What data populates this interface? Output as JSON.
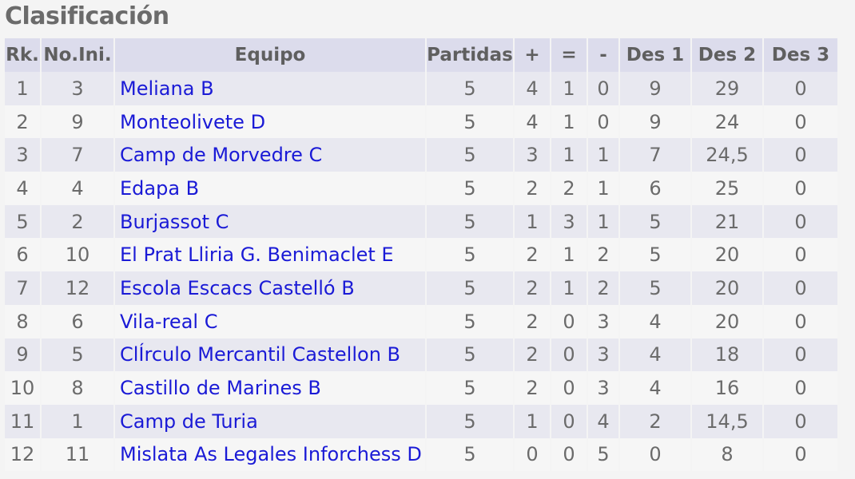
{
  "page_title": "Clasificación",
  "columns": {
    "rank": "Rk.",
    "start_no": "No.Ini.",
    "team": "Equipo",
    "games": "Partidas",
    "wins": "+",
    "draws": "=",
    "losses": "-",
    "tb1": "Des 1",
    "tb2": "Des 2",
    "tb3": "Des 3"
  },
  "rows": [
    {
      "rank": "1",
      "start_no": "3",
      "team": "Meliana B",
      "games": "5",
      "wins": "4",
      "draws": "1",
      "losses": "0",
      "tb1": "9",
      "tb2": "29",
      "tb3": "0"
    },
    {
      "rank": "2",
      "start_no": "9",
      "team": "Monteolivete D",
      "games": "5",
      "wins": "4",
      "draws": "1",
      "losses": "0",
      "tb1": "9",
      "tb2": "24",
      "tb3": "0"
    },
    {
      "rank": "3",
      "start_no": "7",
      "team": "Camp de Morvedre C",
      "games": "5",
      "wins": "3",
      "draws": "1",
      "losses": "1",
      "tb1": "7",
      "tb2": "24,5",
      "tb3": "0"
    },
    {
      "rank": "4",
      "start_no": "4",
      "team": "Edapa B",
      "games": "5",
      "wins": "2",
      "draws": "2",
      "losses": "1",
      "tb1": "6",
      "tb2": "25",
      "tb3": "0"
    },
    {
      "rank": "5",
      "start_no": "2",
      "team": "Burjassot C",
      "games": "5",
      "wins": "1",
      "draws": "3",
      "losses": "1",
      "tb1": "5",
      "tb2": "21",
      "tb3": "0"
    },
    {
      "rank": "6",
      "start_no": "10",
      "team": "El Prat Lliria G. Benimaclet E",
      "games": "5",
      "wins": "2",
      "draws": "1",
      "losses": "2",
      "tb1": "5",
      "tb2": "20",
      "tb3": "0"
    },
    {
      "rank": "7",
      "start_no": "12",
      "team": "Escola Escacs Castelló B",
      "games": "5",
      "wins": "2",
      "draws": "1",
      "losses": "2",
      "tb1": "5",
      "tb2": "20",
      "tb3": "0"
    },
    {
      "rank": "8",
      "start_no": "6",
      "team": "Vila-real C",
      "games": "5",
      "wins": "2",
      "draws": "0",
      "losses": "3",
      "tb1": "4",
      "tb2": "20",
      "tb3": "0"
    },
    {
      "rank": "9",
      "start_no": "5",
      "team": "ClÍrculo Mercantil Castellon B",
      "games": "5",
      "wins": "2",
      "draws": "0",
      "losses": "3",
      "tb1": "4",
      "tb2": "18",
      "tb3": "0"
    },
    {
      "rank": "10",
      "start_no": "8",
      "team": "Castillo de Marines B",
      "games": "5",
      "wins": "2",
      "draws": "0",
      "losses": "3",
      "tb1": "4",
      "tb2": "16",
      "tb3": "0"
    },
    {
      "rank": "11",
      "start_no": "1",
      "team": "Camp de Turia",
      "games": "5",
      "wins": "1",
      "draws": "0",
      "losses": "4",
      "tb1": "2",
      "tb2": "14,5",
      "tb3": "0"
    },
    {
      "rank": "12",
      "start_no": "11",
      "team": "Mislata As Legales Inforchess D",
      "games": "5",
      "wins": "0",
      "draws": "0",
      "losses": "5",
      "tb1": "0",
      "tb2": "8",
      "tb3": "0"
    }
  ],
  "colors": {
    "header_bg": "#dcdcec",
    "row_odd_bg": "#e8e8f0",
    "row_even_bg": "#f6f6f6",
    "link": "#1a1ad6",
    "text": "#6b6b6b"
  }
}
